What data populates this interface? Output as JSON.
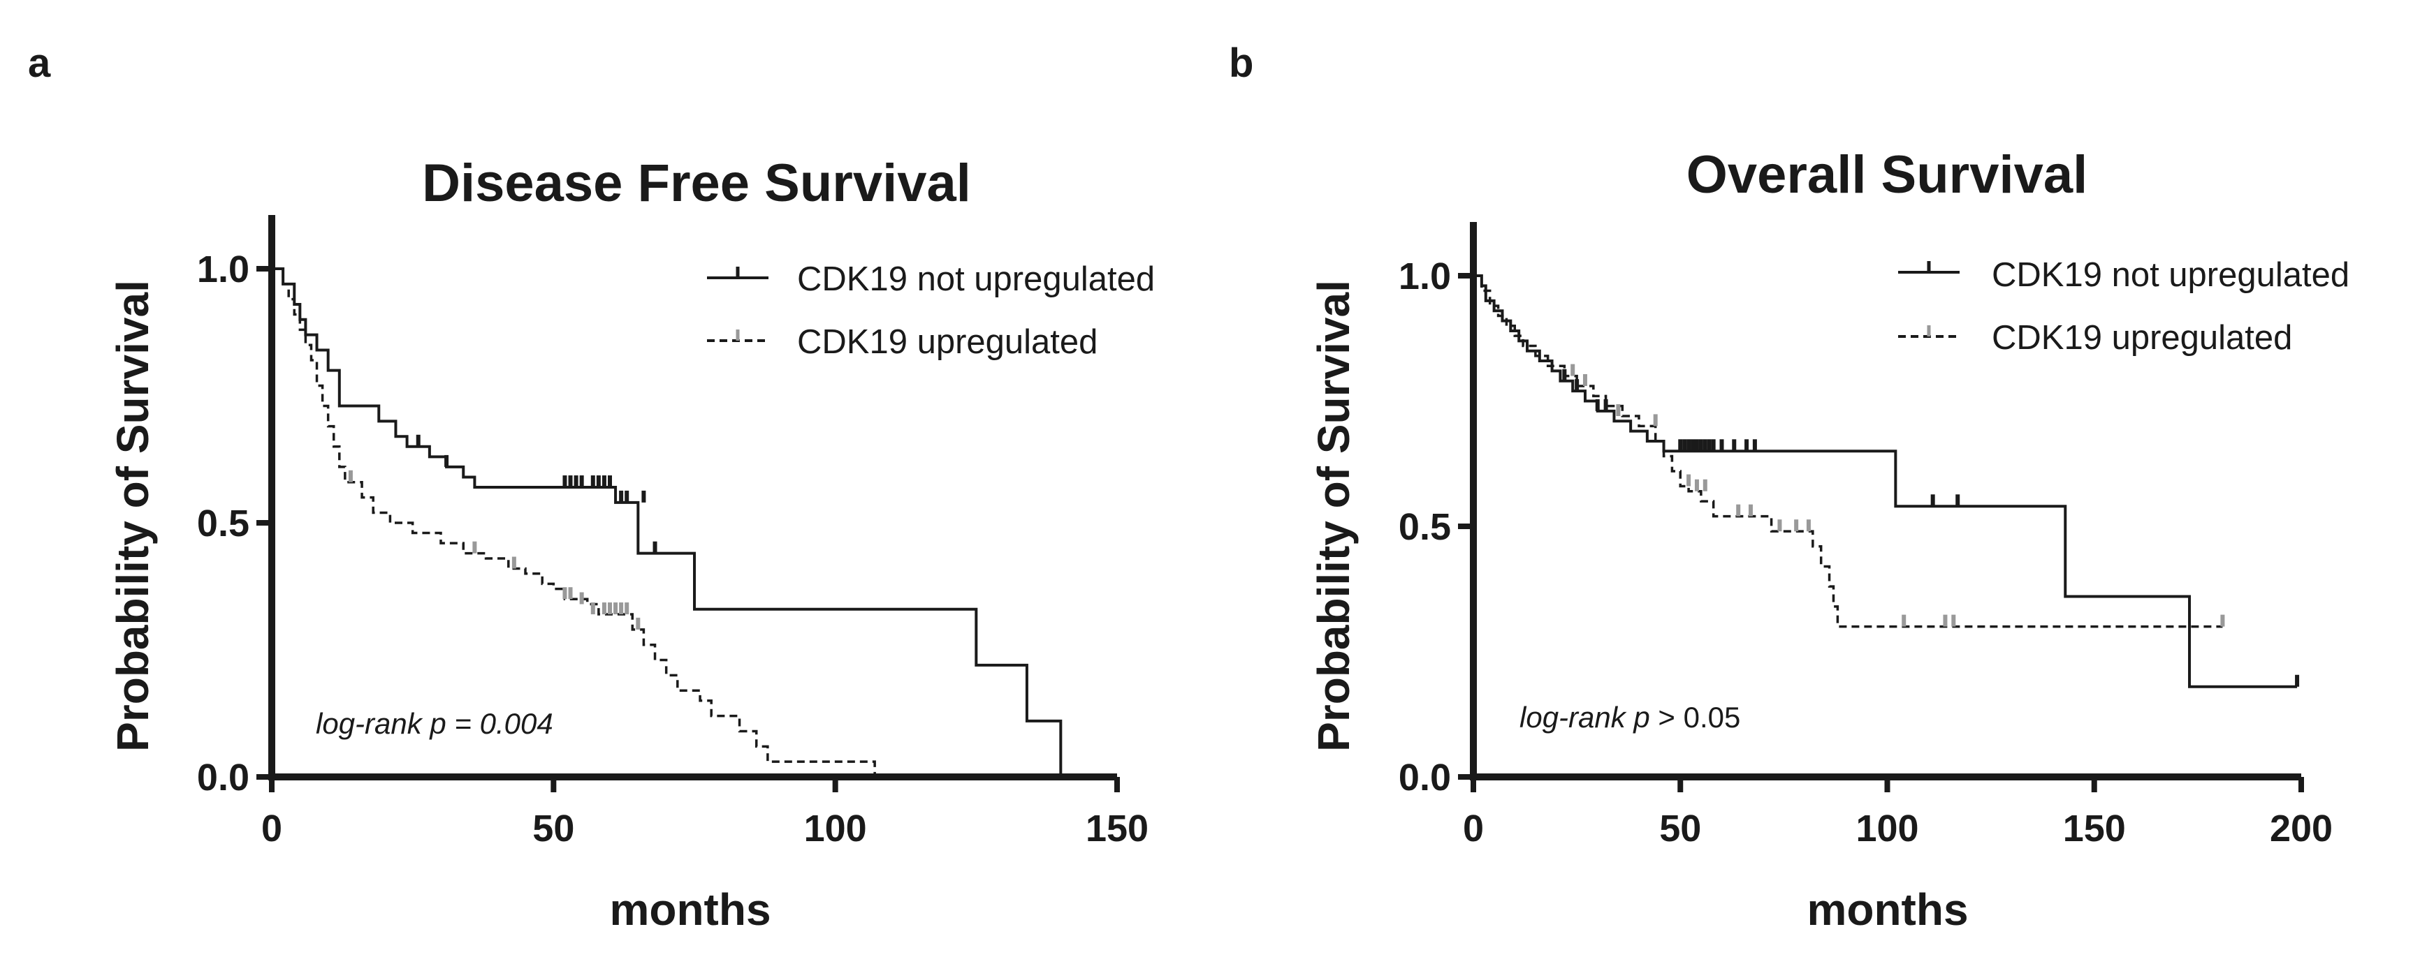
{
  "chart_data": [
    {
      "type": "line",
      "subtype": "kaplan-meier",
      "panel": "a",
      "title": "Disease Free Survival",
      "xlabel": "months",
      "ylabel": "Probability of Survival",
      "xlim": [
        0,
        150
      ],
      "ylim": [
        0,
        1.1
      ],
      "xticks": [
        "0",
        "50",
        "100",
        "150"
      ],
      "xtick_values": [
        0,
        50,
        100,
        150
      ],
      "yticks": [
        "0.0",
        "0.5",
        "1.0"
      ],
      "ytick_values": [
        0,
        0.5,
        1.0
      ],
      "legend_position": "top-right",
      "annotation": {
        "italic": "log-rank p = 0.004",
        "plain": ""
      },
      "series": [
        {
          "name": "CDK19 not upregulated",
          "style": "solid",
          "color": "#1a1a1a",
          "censor_color": "#1a1a1a",
          "steps": [
            [
              0,
              1.0
            ],
            [
              2,
              0.97
            ],
            [
              4,
              0.93
            ],
            [
              5,
              0.9
            ],
            [
              6,
              0.87
            ],
            [
              8,
              0.84
            ],
            [
              10,
              0.8
            ],
            [
              12,
              0.77
            ],
            [
              12,
              0.8
            ],
            [
              12,
              0.73
            ],
            [
              19,
              0.73
            ],
            [
              19,
              0.7
            ],
            [
              22,
              0.67
            ],
            [
              24,
              0.65
            ],
            [
              28,
              0.63
            ],
            [
              31,
              0.61
            ],
            [
              34,
              0.59
            ],
            [
              36,
              0.57
            ],
            [
              60,
              0.57
            ],
            [
              61,
              0.54
            ],
            [
              65,
              0.54
            ],
            [
              65,
              0.44
            ],
            [
              75,
              0.44
            ],
            [
              75,
              0.33
            ],
            [
              125,
              0.33
            ],
            [
              125,
              0.22
            ],
            [
              134,
              0.22
            ],
            [
              134,
              0.11
            ],
            [
              140,
              0.11
            ],
            [
              140,
              0.0
            ]
          ],
          "censored": [
            [
              26,
              0.65
            ],
            [
              31,
              0.61
            ],
            [
              52,
              0.57
            ],
            [
              53,
              0.57
            ],
            [
              54,
              0.57
            ],
            [
              55,
              0.57
            ],
            [
              57,
              0.57
            ],
            [
              58,
              0.57
            ],
            [
              59,
              0.57
            ],
            [
              60,
              0.57
            ],
            [
              62,
              0.54
            ],
            [
              63,
              0.54
            ],
            [
              66,
              0.54
            ],
            [
              68,
              0.44
            ]
          ]
        },
        {
          "name": "CDK19 upregulated",
          "style": "dashed",
          "color": "#1a1a1a",
          "censor_color": "#999999",
          "steps": [
            [
              0,
              1.0
            ],
            [
              2,
              0.97
            ],
            [
              3,
              0.94
            ],
            [
              4,
              0.91
            ],
            [
              5,
              0.88
            ],
            [
              6,
              0.85
            ],
            [
              7,
              0.82
            ],
            [
              8,
              0.77
            ],
            [
              9,
              0.73
            ],
            [
              10,
              0.69
            ],
            [
              11,
              0.65
            ],
            [
              12,
              0.61
            ],
            [
              13,
              0.58
            ],
            [
              16,
              0.55
            ],
            [
              18,
              0.52
            ],
            [
              21,
              0.5
            ],
            [
              25,
              0.48
            ],
            [
              30,
              0.46
            ],
            [
              34,
              0.44
            ],
            [
              38,
              0.43
            ],
            [
              42,
              0.41
            ],
            [
              45,
              0.4
            ],
            [
              48,
              0.38
            ],
            [
              50,
              0.37
            ],
            [
              52,
              0.35
            ],
            [
              56,
              0.34
            ],
            [
              58,
              0.32
            ],
            [
              64,
              0.29
            ],
            [
              66,
              0.26
            ],
            [
              68,
              0.23
            ],
            [
              70,
              0.2
            ],
            [
              72,
              0.17
            ],
            [
              76,
              0.15
            ],
            [
              78,
              0.12
            ],
            [
              83,
              0.09
            ],
            [
              86,
              0.06
            ],
            [
              88,
              0.03
            ],
            [
              96,
              0.03
            ],
            [
              107,
              0.03
            ],
            [
              107,
              0.0
            ]
          ],
          "censored": [
            [
              14,
              0.58
            ],
            [
              36,
              0.44
            ],
            [
              43,
              0.41
            ],
            [
              52,
              0.35
            ],
            [
              53,
              0.35
            ],
            [
              55,
              0.34
            ],
            [
              57,
              0.32
            ],
            [
              59,
              0.32
            ],
            [
              60,
              0.32
            ],
            [
              61,
              0.32
            ],
            [
              62,
              0.32
            ],
            [
              63,
              0.32
            ],
            [
              65,
              0.29
            ]
          ]
        }
      ]
    },
    {
      "type": "line",
      "subtype": "kaplan-meier",
      "panel": "b",
      "title": "Overall Survival",
      "xlabel": "months",
      "ylabel": "Probability of Survival",
      "xlim": [
        0,
        200
      ],
      "ylim": [
        0,
        1.1
      ],
      "xticks": [
        "0",
        "50",
        "100",
        "150",
        "200"
      ],
      "xtick_values": [
        0,
        50,
        100,
        150,
        200
      ],
      "yticks": [
        "0.0",
        "0.5",
        "1.0"
      ],
      "ytick_values": [
        0,
        0.5,
        1.0
      ],
      "legend_position": "top-right",
      "annotation": {
        "italic": "log-rank p",
        "plain": " > 0.05"
      },
      "series": [
        {
          "name": "CDK19 not upregulated",
          "style": "solid",
          "color": "#1a1a1a",
          "censor_color": "#1a1a1a",
          "steps": [
            [
              0,
              1.0
            ],
            [
              2,
              0.98
            ],
            [
              3,
              0.95
            ],
            [
              5,
              0.93
            ],
            [
              7,
              0.91
            ],
            [
              9,
              0.89
            ],
            [
              11,
              0.87
            ],
            [
              13,
              0.85
            ],
            [
              16,
              0.83
            ],
            [
              19,
              0.81
            ],
            [
              21,
              0.79
            ],
            [
              24,
              0.77
            ],
            [
              27,
              0.75
            ],
            [
              30,
              0.73
            ],
            [
              34,
              0.71
            ],
            [
              38,
              0.69
            ],
            [
              42,
              0.67
            ],
            [
              46,
              0.65
            ],
            [
              102,
              0.65
            ],
            [
              102,
              0.54
            ],
            [
              143,
              0.54
            ],
            [
              143,
              0.36
            ],
            [
              173,
              0.36
            ],
            [
              173,
              0.18
            ],
            [
              199,
              0.18
            ]
          ],
          "censored": [
            [
              22,
              0.79
            ],
            [
              25,
              0.77
            ],
            [
              30,
              0.73
            ],
            [
              32,
              0.73
            ],
            [
              50,
              0.65
            ],
            [
              51,
              0.65
            ],
            [
              52,
              0.65
            ],
            [
              53,
              0.65
            ],
            [
              54,
              0.65
            ],
            [
              55,
              0.65
            ],
            [
              56,
              0.65
            ],
            [
              57,
              0.65
            ],
            [
              58,
              0.65
            ],
            [
              60,
              0.65
            ],
            [
              63,
              0.65
            ],
            [
              66,
              0.65
            ],
            [
              68,
              0.65
            ],
            [
              111,
              0.54
            ],
            [
              117,
              0.54
            ],
            [
              199,
              0.18
            ]
          ]
        },
        {
          "name": "CDK19 upregulated",
          "style": "dashed",
          "color": "#1a1a1a",
          "censor_color": "#999999",
          "steps": [
            [
              0,
              1.0
            ],
            [
              2,
              0.97
            ],
            [
              4,
              0.94
            ],
            [
              6,
              0.92
            ],
            [
              8,
              0.9
            ],
            [
              10,
              0.88
            ],
            [
              12,
              0.86
            ],
            [
              15,
              0.84
            ],
            [
              18,
              0.82
            ],
            [
              22,
              0.8
            ],
            [
              25,
              0.78
            ],
            [
              29,
              0.76
            ],
            [
              32,
              0.74
            ],
            [
              36,
              0.72
            ],
            [
              40,
              0.7
            ],
            [
              44,
              0.67
            ],
            [
              46,
              0.64
            ],
            [
              48,
              0.61
            ],
            [
              50,
              0.58
            ],
            [
              52,
              0.57
            ],
            [
              55,
              0.55
            ],
            [
              58,
              0.52
            ],
            [
              70,
              0.52
            ],
            [
              72,
              0.49
            ],
            [
              80,
              0.49
            ],
            [
              82,
              0.46
            ],
            [
              84,
              0.42
            ],
            [
              86,
              0.38
            ],
            [
              87,
              0.34
            ],
            [
              88,
              0.3
            ],
            [
              181,
              0.3
            ]
          ],
          "censored": [
            [
              24,
              0.8
            ],
            [
              27,
              0.78
            ],
            [
              35,
              0.72
            ],
            [
              44,
              0.7
            ],
            [
              52,
              0.58
            ],
            [
              54,
              0.57
            ],
            [
              56,
              0.57
            ],
            [
              64,
              0.52
            ],
            [
              67,
              0.52
            ],
            [
              74,
              0.49
            ],
            [
              78,
              0.49
            ],
            [
              81,
              0.49
            ],
            [
              104,
              0.3
            ],
            [
              114,
              0.3
            ],
            [
              116,
              0.3
            ],
            [
              181,
              0.3
            ]
          ]
        }
      ]
    }
  ]
}
